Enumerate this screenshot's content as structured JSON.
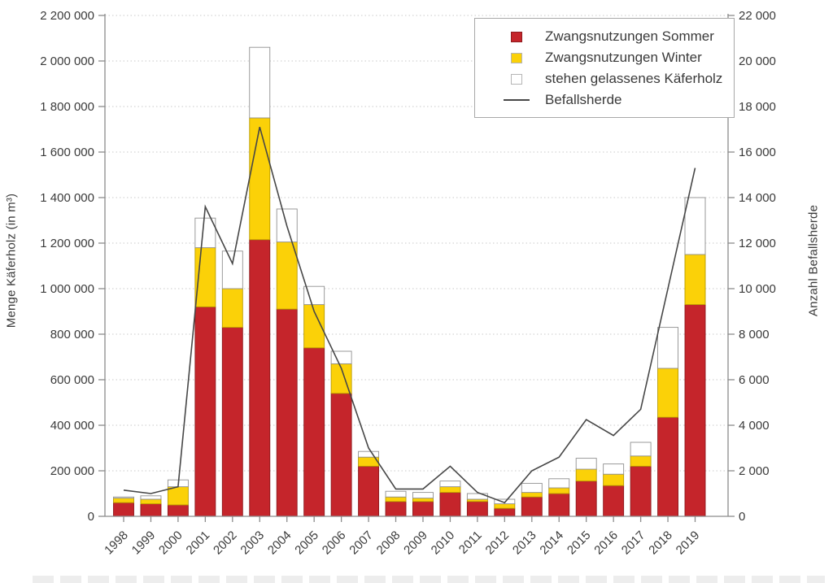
{
  "chart_data": {
    "type": "bar",
    "subtype": "stacked-bars-with-line",
    "title": "",
    "years": [
      "1998",
      "1999",
      "2000",
      "2001",
      "2002",
      "2003",
      "2004",
      "2005",
      "2006",
      "2007",
      "2008",
      "2009",
      "2010",
      "2011",
      "2012",
      "2013",
      "2014",
      "2015",
      "2016",
      "2017",
      "2018",
      "2019"
    ],
    "series": [
      {
        "name": "Zwangsnutzungen Sommer",
        "color": "#c5252b",
        "edge": "#8e1b1f",
        "values": [
          60000,
          55000,
          50000,
          920000,
          830000,
          1215000,
          910000,
          740000,
          540000,
          220000,
          65000,
          65000,
          105000,
          65000,
          35000,
          85000,
          100000,
          155000,
          135000,
          220000,
          435000,
          930000
        ]
      },
      {
        "name": "Zwangsnutzungen Winter",
        "color": "#fbd108",
        "edge": "#b99c00",
        "values": [
          20000,
          20000,
          80000,
          260000,
          170000,
          535000,
          295000,
          190000,
          130000,
          40000,
          20000,
          15000,
          25000,
          10000,
          20000,
          20000,
          25000,
          52000,
          50000,
          45000,
          215000,
          220000
        ]
      },
      {
        "name": "stehen gelassenes Käferholz",
        "color": "#ffffff",
        "edge": "#909090",
        "values": [
          5000,
          15000,
          30000,
          130000,
          165000,
          310000,
          145000,
          80000,
          55000,
          25000,
          25000,
          25000,
          25000,
          25000,
          20000,
          40000,
          40000,
          48000,
          45000,
          60000,
          180000,
          250000
        ]
      }
    ],
    "line_series": {
      "name": "Befallsherde",
      "color": "#474747",
      "values": [
        1150,
        1000,
        1300,
        13600,
        11100,
        17100,
        12750,
        9000,
        6500,
        3000,
        1200,
        1200,
        2200,
        1050,
        600,
        2000,
        2600,
        4250,
        3550,
        4700,
        10000,
        15300
      ]
    },
    "left_axis": {
      "label": "Menge Käferholz (in m³)",
      "min": 0,
      "max": 2200000,
      "step": 200000
    },
    "right_axis": {
      "label": "Anzahl Befallsherde",
      "min": 0,
      "max": 22000,
      "step": 2000
    },
    "grid": "dotted horizontal at every left-axis step",
    "legend_position": "top-right inside plot"
  }
}
